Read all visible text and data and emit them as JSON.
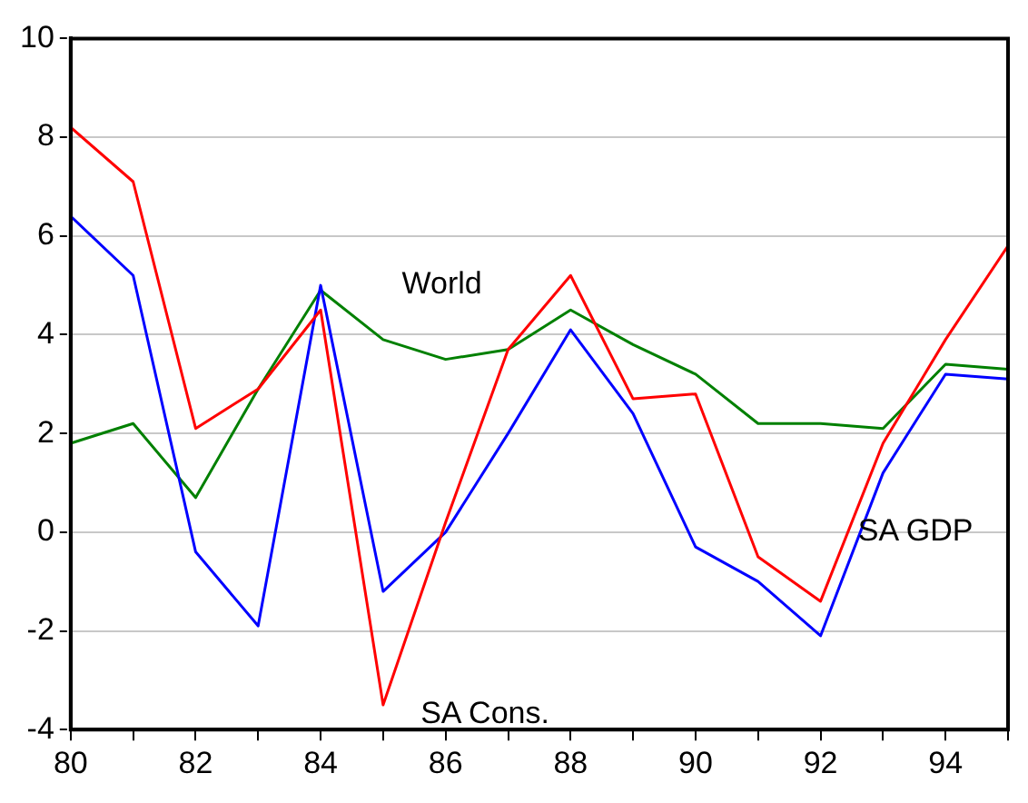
{
  "chart_data": {
    "type": "line",
    "x": [
      80,
      81,
      82,
      83,
      84,
      85,
      86,
      87,
      88,
      89,
      90,
      91,
      92,
      93,
      94,
      95
    ],
    "series": [
      {
        "name": "SA Cons.",
        "color": "#ff0000",
        "values": [
          8.2,
          7.1,
          2.1,
          2.9,
          4.5,
          -3.5,
          0.2,
          3.7,
          5.2,
          2.7,
          2.8,
          -0.5,
          -1.4,
          1.8,
          3.9,
          5.8
        ]
      },
      {
        "name": "SA GDP",
        "color": "#0000ff",
        "values": [
          6.4,
          5.2,
          -0.4,
          -1.9,
          5.0,
          -1.2,
          0.0,
          2.0,
          4.1,
          2.4,
          -0.3,
          -1.0,
          -2.1,
          1.2,
          3.2,
          3.1
        ]
      },
      {
        "name": "World",
        "color": "#008000",
        "values": [
          1.8,
          2.2,
          0.7,
          2.9,
          4.9,
          3.9,
          3.5,
          3.7,
          4.5,
          3.8,
          3.2,
          2.2,
          2.2,
          2.1,
          3.4,
          3.3
        ]
      }
    ],
    "xlim": [
      80,
      95
    ],
    "xticks": [
      80,
      {
        "value": 81,
        "label": null
      },
      82,
      {
        "value": 83,
        "label": null
      },
      84,
      {
        "value": 85,
        "label": null
      },
      86,
      {
        "value": 87,
        "label": null
      },
      88,
      {
        "value": 89,
        "label": null
      },
      90,
      {
        "value": 91,
        "label": null
      },
      92,
      {
        "value": 93,
        "label": null
      },
      94,
      {
        "value": 95,
        "label": null
      }
    ],
    "ylim": [
      -4,
      10
    ],
    "yticks": [
      -4,
      -2,
      0,
      2,
      4,
      6,
      8,
      10
    ],
    "grid": "y",
    "legend": false,
    "marker": "none",
    "line_style": "solid"
  }
}
